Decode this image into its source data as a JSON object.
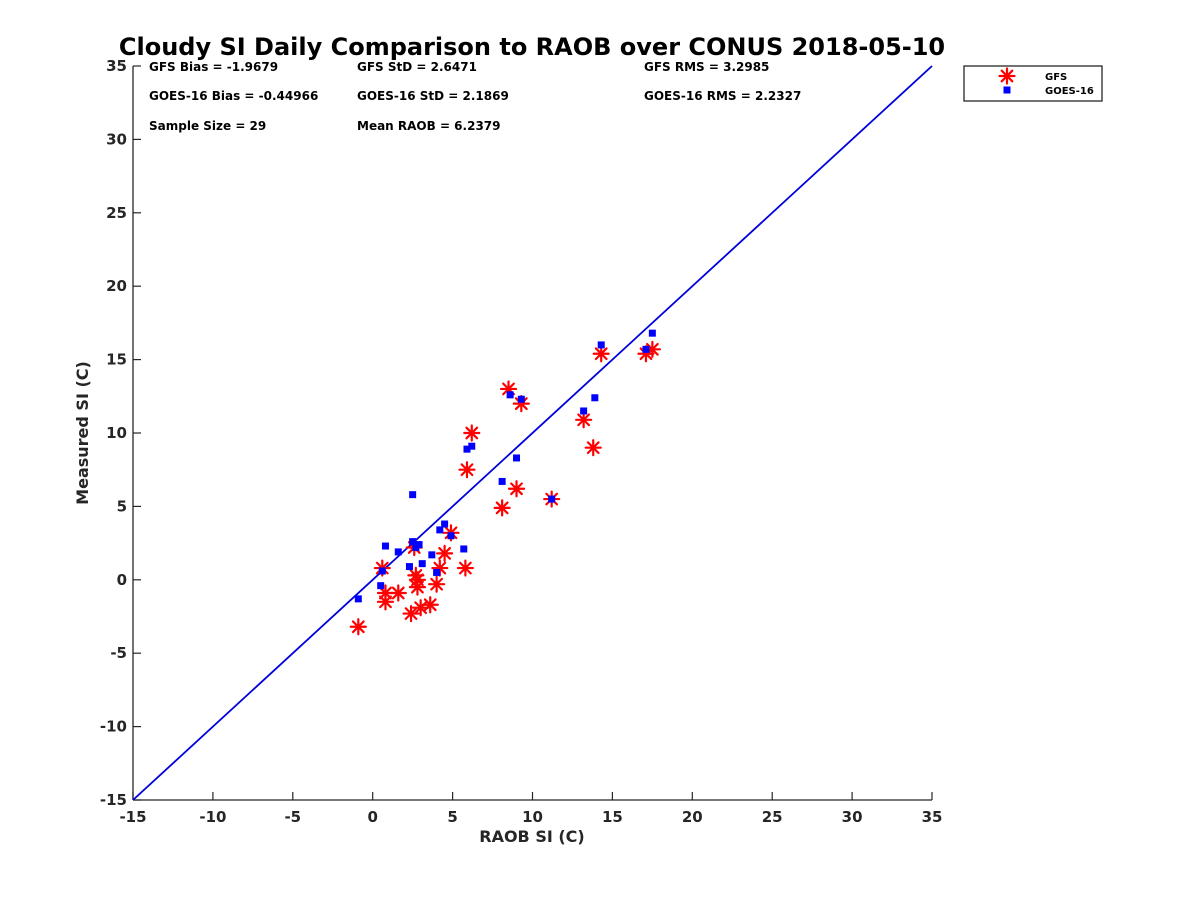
{
  "chart_data": {
    "type": "scatter",
    "title": "Cloudy SI Daily Comparison to RAOB over CONUS 2018-05-10",
    "xlabel": "RAOB SI (C)",
    "ylabel": "Measured SI (C)",
    "xlim": [
      -15,
      35
    ],
    "ylim": [
      -15,
      35
    ],
    "x_ticks": [
      -15,
      -10,
      -5,
      0,
      5,
      10,
      15,
      20,
      25,
      30,
      35
    ],
    "y_ticks": [
      -15,
      -10,
      -5,
      0,
      5,
      10,
      15,
      20,
      25,
      30,
      35
    ],
    "grid": false,
    "legend_position": "top-right",
    "reference_line": {
      "type": "one-to-one",
      "color": "#0000dd"
    },
    "stats": [
      "GFS Bias = -1.9679",
      "GFS StD = 2.6471",
      "GFS RMS = 3.2985",
      "GOES-16 Bias = -0.44966",
      "GOES-16 StD = 2.1869",
      "GOES-16 RMS = 2.2327",
      "Sample Size = 29",
      "Mean RAOB = 6.2379"
    ],
    "series": [
      {
        "name": "GFS",
        "marker": "asterisk",
        "color": "#ff0000",
        "points": [
          [
            -0.9,
            -3.2
          ],
          [
            0.6,
            0.8
          ],
          [
            0.8,
            -0.9
          ],
          [
            0.8,
            -1.5
          ],
          [
            1.6,
            -0.9
          ],
          [
            2.4,
            -2.3
          ],
          [
            2.6,
            2.2
          ],
          [
            2.7,
            0.3
          ],
          [
            2.8,
            0.0
          ],
          [
            2.8,
            -0.5
          ],
          [
            3.0,
            -1.9
          ],
          [
            3.6,
            -1.7
          ],
          [
            4.0,
            -0.3
          ],
          [
            4.2,
            0.8
          ],
          [
            4.5,
            1.8
          ],
          [
            4.9,
            3.2
          ],
          [
            5.8,
            0.8
          ],
          [
            5.9,
            7.5
          ],
          [
            6.2,
            10.0
          ],
          [
            8.1,
            4.9
          ],
          [
            8.5,
            13.0
          ],
          [
            9.0,
            6.2
          ],
          [
            9.3,
            12.0
          ],
          [
            11.2,
            5.5
          ],
          [
            13.2,
            10.9
          ],
          [
            13.8,
            9.0
          ],
          [
            14.3,
            15.4
          ],
          [
            17.1,
            15.4
          ],
          [
            17.5,
            15.7
          ]
        ]
      },
      {
        "name": "GOES-16",
        "marker": "square",
        "color": "#0000ff",
        "points": [
          [
            -0.9,
            -1.3
          ],
          [
            0.5,
            -0.4
          ],
          [
            0.6,
            0.6
          ],
          [
            0.8,
            2.3
          ],
          [
            1.6,
            1.9
          ],
          [
            2.3,
            0.9
          ],
          [
            2.5,
            5.8
          ],
          [
            2.5,
            2.6
          ],
          [
            2.7,
            2.2
          ],
          [
            2.9,
            2.4
          ],
          [
            3.1,
            1.1
          ],
          [
            3.7,
            1.7
          ],
          [
            4.0,
            0.5
          ],
          [
            4.2,
            3.4
          ],
          [
            4.5,
            3.8
          ],
          [
            4.9,
            3.0
          ],
          [
            5.7,
            2.1
          ],
          [
            5.9,
            8.9
          ],
          [
            6.2,
            9.1
          ],
          [
            8.1,
            6.7
          ],
          [
            8.6,
            12.6
          ],
          [
            9.0,
            8.3
          ],
          [
            9.3,
            12.3
          ],
          [
            11.2,
            5.5
          ],
          [
            13.2,
            11.5
          ],
          [
            13.9,
            12.4
          ],
          [
            14.3,
            16.0
          ],
          [
            17.1,
            15.7
          ],
          [
            17.5,
            16.8
          ]
        ]
      }
    ]
  }
}
